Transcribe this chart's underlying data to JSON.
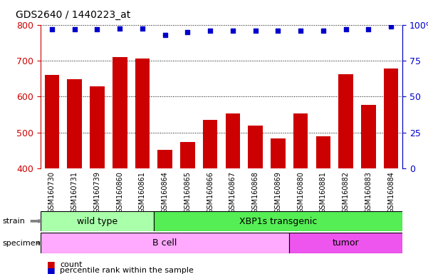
{
  "title": "GDS2640 / 1440223_at",
  "samples": [
    "GSM160730",
    "GSM160731",
    "GSM160739",
    "GSM160860",
    "GSM160861",
    "GSM160864",
    "GSM160865",
    "GSM160866",
    "GSM160867",
    "GSM160868",
    "GSM160869",
    "GSM160880",
    "GSM160881",
    "GSM160882",
    "GSM160883",
    "GSM160884"
  ],
  "counts": [
    660,
    648,
    628,
    710,
    705,
    452,
    473,
    535,
    554,
    520,
    483,
    554,
    490,
    662,
    577,
    678
  ],
  "percentiles": [
    97,
    97,
    97,
    97.5,
    97.5,
    93,
    95,
    96,
    96,
    96,
    96,
    96,
    96,
    97,
    97,
    99
  ],
  "bar_color": "#cc0000",
  "dot_color": "#0000cc",
  "ylim_left": [
    400,
    800
  ],
  "ylim_right": [
    0,
    100
  ],
  "yticks_left": [
    400,
    500,
    600,
    700,
    800
  ],
  "yticks_right": [
    0,
    25,
    50,
    75,
    100
  ],
  "left_tick_color": "#cc0000",
  "right_tick_color": "#0000cc",
  "tick_bg_color": "#c8c8c8",
  "strain_groups": [
    {
      "label": "wild type",
      "start": 0,
      "end": 5,
      "color": "#aaffaa"
    },
    {
      "label": "XBP1s transgenic",
      "start": 5,
      "end": 16,
      "color": "#55ee55"
    }
  ],
  "specimen_groups": [
    {
      "label": "B cell",
      "start": 0,
      "end": 11,
      "color": "#ffaaff"
    },
    {
      "label": "tumor",
      "start": 11,
      "end": 16,
      "color": "#ee55ee"
    }
  ],
  "legend_items": [
    {
      "color": "#cc0000",
      "label": "count"
    },
    {
      "color": "#0000cc",
      "label": "percentile rank within the sample"
    }
  ]
}
